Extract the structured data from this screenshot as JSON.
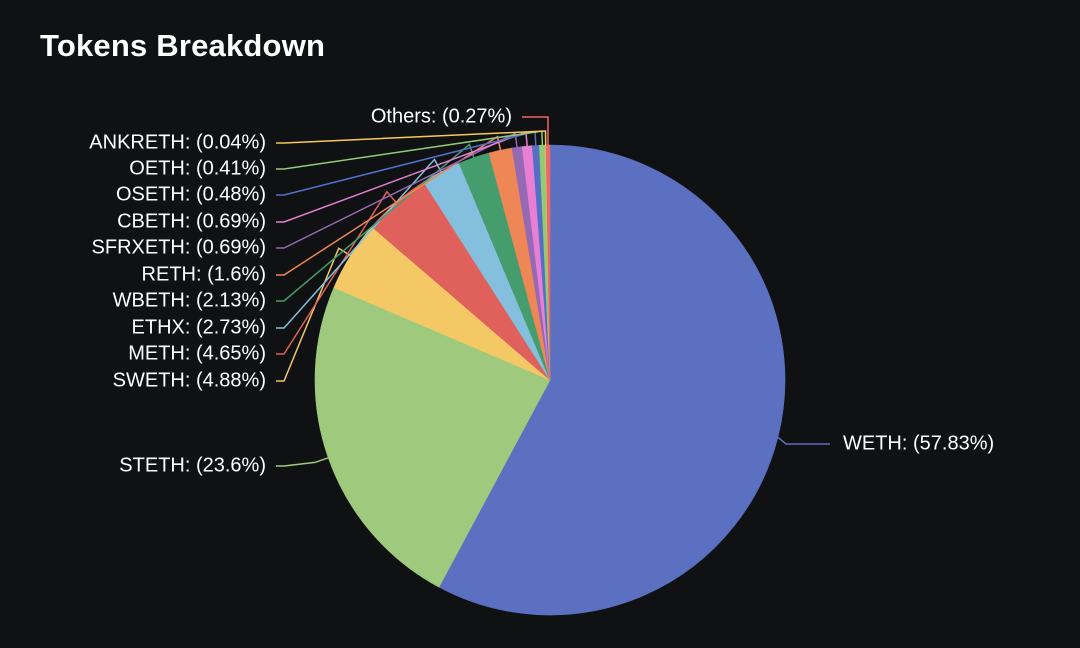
{
  "title": "Tokens Breakdown",
  "chart_data": {
    "type": "pie",
    "title": "Tokens Breakdown",
    "start_angle_deg": 90,
    "direction": "clockwise",
    "slices": [
      {
        "name": "WETH",
        "value": 57.83,
        "label": "WETH: (57.83%)",
        "color": "#5b70c0"
      },
      {
        "name": "STETH",
        "value": 23.6,
        "label": "STETH: (23.6%)",
        "color": "#9fca7d"
      },
      {
        "name": "SWETH",
        "value": 4.88,
        "label": "SWETH: (4.88%)",
        "color": "#f3c865"
      },
      {
        "name": "METH",
        "value": 4.65,
        "label": "METH: (4.65%)",
        "color": "#e0605c"
      },
      {
        "name": "ETHX",
        "value": 2.73,
        "label": "ETHX: (2.73%)",
        "color": "#84c0de"
      },
      {
        "name": "WBETH",
        "value": 2.13,
        "label": "WBETH: (2.13%)",
        "color": "#459c6c"
      },
      {
        "name": "RETH",
        "value": 1.6,
        "label": "RETH: (1.6%)",
        "color": "#ee8655"
      },
      {
        "name": "SFRXETH",
        "value": 0.69,
        "label": "SFRXETH: (0.69%)",
        "color": "#9669b4"
      },
      {
        "name": "CBETH",
        "value": 0.69,
        "label": "CBETH: (0.69%)",
        "color": "#e87fd5"
      },
      {
        "name": "OSETH",
        "value": 0.48,
        "label": "OSETH: (0.48%)",
        "color": "#5470c6"
      },
      {
        "name": "OETH",
        "value": 0.41,
        "label": "OETH: (0.41%)",
        "color": "#91cc75"
      },
      {
        "name": "ANKRETH",
        "value": 0.04,
        "label": "ANKRETH: (0.04%)",
        "color": "#fac858"
      },
      {
        "name": "Others",
        "value": 0.27,
        "label": "Others: (0.27%)",
        "color": "#ee6666"
      }
    ]
  }
}
